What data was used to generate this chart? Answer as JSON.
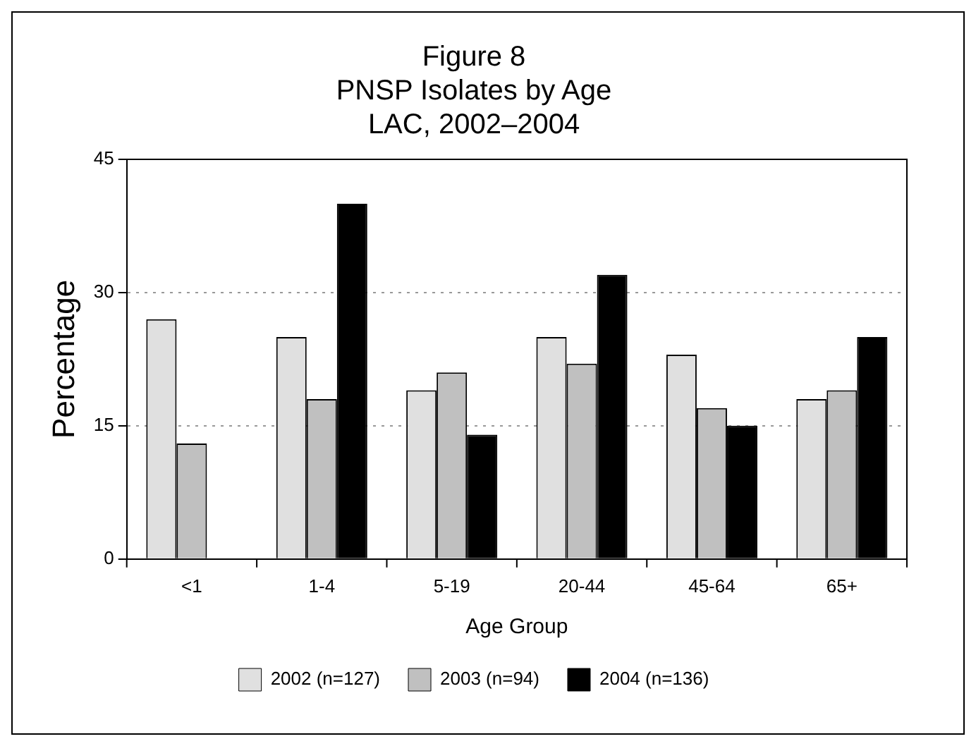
{
  "chart_data": {
    "type": "bar",
    "title": [
      "Figure 8",
      "PNSP Isolates by Age",
      "LAC, 2002–2004"
    ],
    "xlabel": "Age Group",
    "ylabel": "Percentage",
    "categories": [
      "<1",
      "1-4",
      "5-19",
      "20-44",
      "45-64",
      "65+"
    ],
    "series": [
      {
        "name": "2002 (n=127)",
        "color": "#e0e0e0",
        "values": [
          27,
          25,
          19,
          25,
          23,
          18
        ]
      },
      {
        "name": "2003 (n=94)",
        "color": "#c0c0c0",
        "values": [
          13,
          18,
          21,
          22,
          17,
          19
        ]
      },
      {
        "name": "2004 (n=136)",
        "color": "#000000",
        "values": [
          0,
          40,
          14,
          32,
          15,
          25
        ]
      }
    ],
    "ylim": [
      0,
      45
    ],
    "yticks": [
      0,
      15,
      30,
      45
    ],
    "grid": "y",
    "legend": "bottom"
  }
}
